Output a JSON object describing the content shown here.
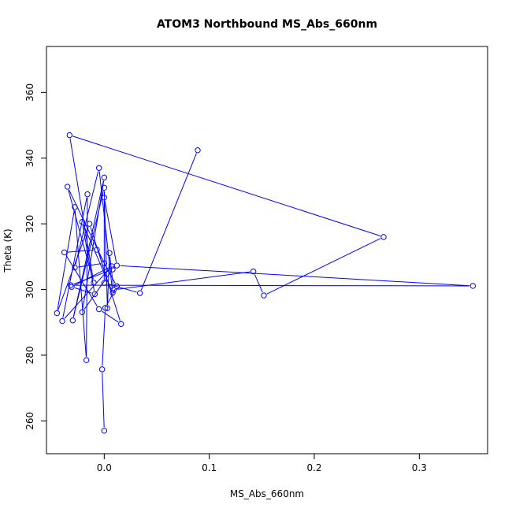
{
  "chart_data": {
    "type": "line",
    "title": "ATOM3 Northbound MS_Abs_660nm",
    "xlabel": "MS_Abs_660nm",
    "ylabel": "Theta (K)",
    "xlim": [
      -0.055,
      0.365
    ],
    "ylim": [
      250,
      374
    ],
    "xticks": [
      {
        "value": 0.0,
        "label": "0.0"
      },
      {
        "value": 0.1,
        "label": "0.1"
      },
      {
        "value": 0.2,
        "label": "0.2"
      },
      {
        "value": 0.3,
        "label": "0.3"
      }
    ],
    "yticks": [
      {
        "value": 260,
        "label": "260"
      },
      {
        "value": 280,
        "label": "280"
      },
      {
        "value": 300,
        "label": "300"
      },
      {
        "value": 320,
        "label": "320"
      },
      {
        "value": 340,
        "label": "340"
      },
      {
        "value": 360,
        "label": "360"
      }
    ],
    "grid": false,
    "markers": "open-circle",
    "line_color": "#0000ff",
    "series": [
      {
        "points": [
          [
            0.0,
            257.0
          ],
          [
            -0.002,
            275.7
          ],
          [
            0.001,
            294.4
          ],
          [
            0.012,
            301.0
          ],
          [
            -0.007,
            312.1
          ],
          [
            -0.038,
            311.3
          ],
          [
            -0.005,
            294.0
          ],
          [
            0.016,
            289.5
          ],
          [
            -0.014,
            320.0
          ],
          [
            -0.045,
            292.8
          ],
          [
            -0.028,
            325.1
          ],
          [
            -0.017,
            278.5
          ],
          [
            -0.016,
            329.0
          ],
          [
            -0.04,
            290.4
          ],
          [
            0.007,
            307.1
          ],
          [
            -0.031,
            300.8
          ],
          [
            -0.009,
            298.6
          ],
          [
            -0.021,
            320.6
          ],
          [
            0.008,
            299.0
          ],
          [
            -0.005,
            337.0
          ],
          [
            -0.028,
            306.7
          ],
          [
            0.0,
            308.0
          ],
          [
            -0.035,
            331.3
          ],
          [
            -0.01,
            302.1
          ],
          [
            -0.033,
            347.0
          ],
          [
            0.266,
            316.0
          ],
          [
            0.152,
            298.2
          ],
          [
            0.142,
            305.5
          ],
          [
            0.009,
            299.9
          ],
          [
            0.005,
            311.1
          ],
          [
            0.003,
            294.3
          ],
          [
            0.0,
            331.0
          ],
          [
            -0.03,
            290.6
          ],
          [
            0.0,
            334.1
          ],
          [
            -0.021,
            293.1
          ],
          [
            0.008,
            306.1
          ],
          [
            -0.032,
            301.3
          ],
          [
            0.351,
            301.1
          ],
          [
            0.012,
            307.3
          ],
          [
            0.0,
            328.0
          ],
          [
            0.0,
            302.0
          ],
          [
            0.034,
            298.9
          ],
          [
            0.089,
            342.4
          ]
        ]
      }
    ]
  }
}
